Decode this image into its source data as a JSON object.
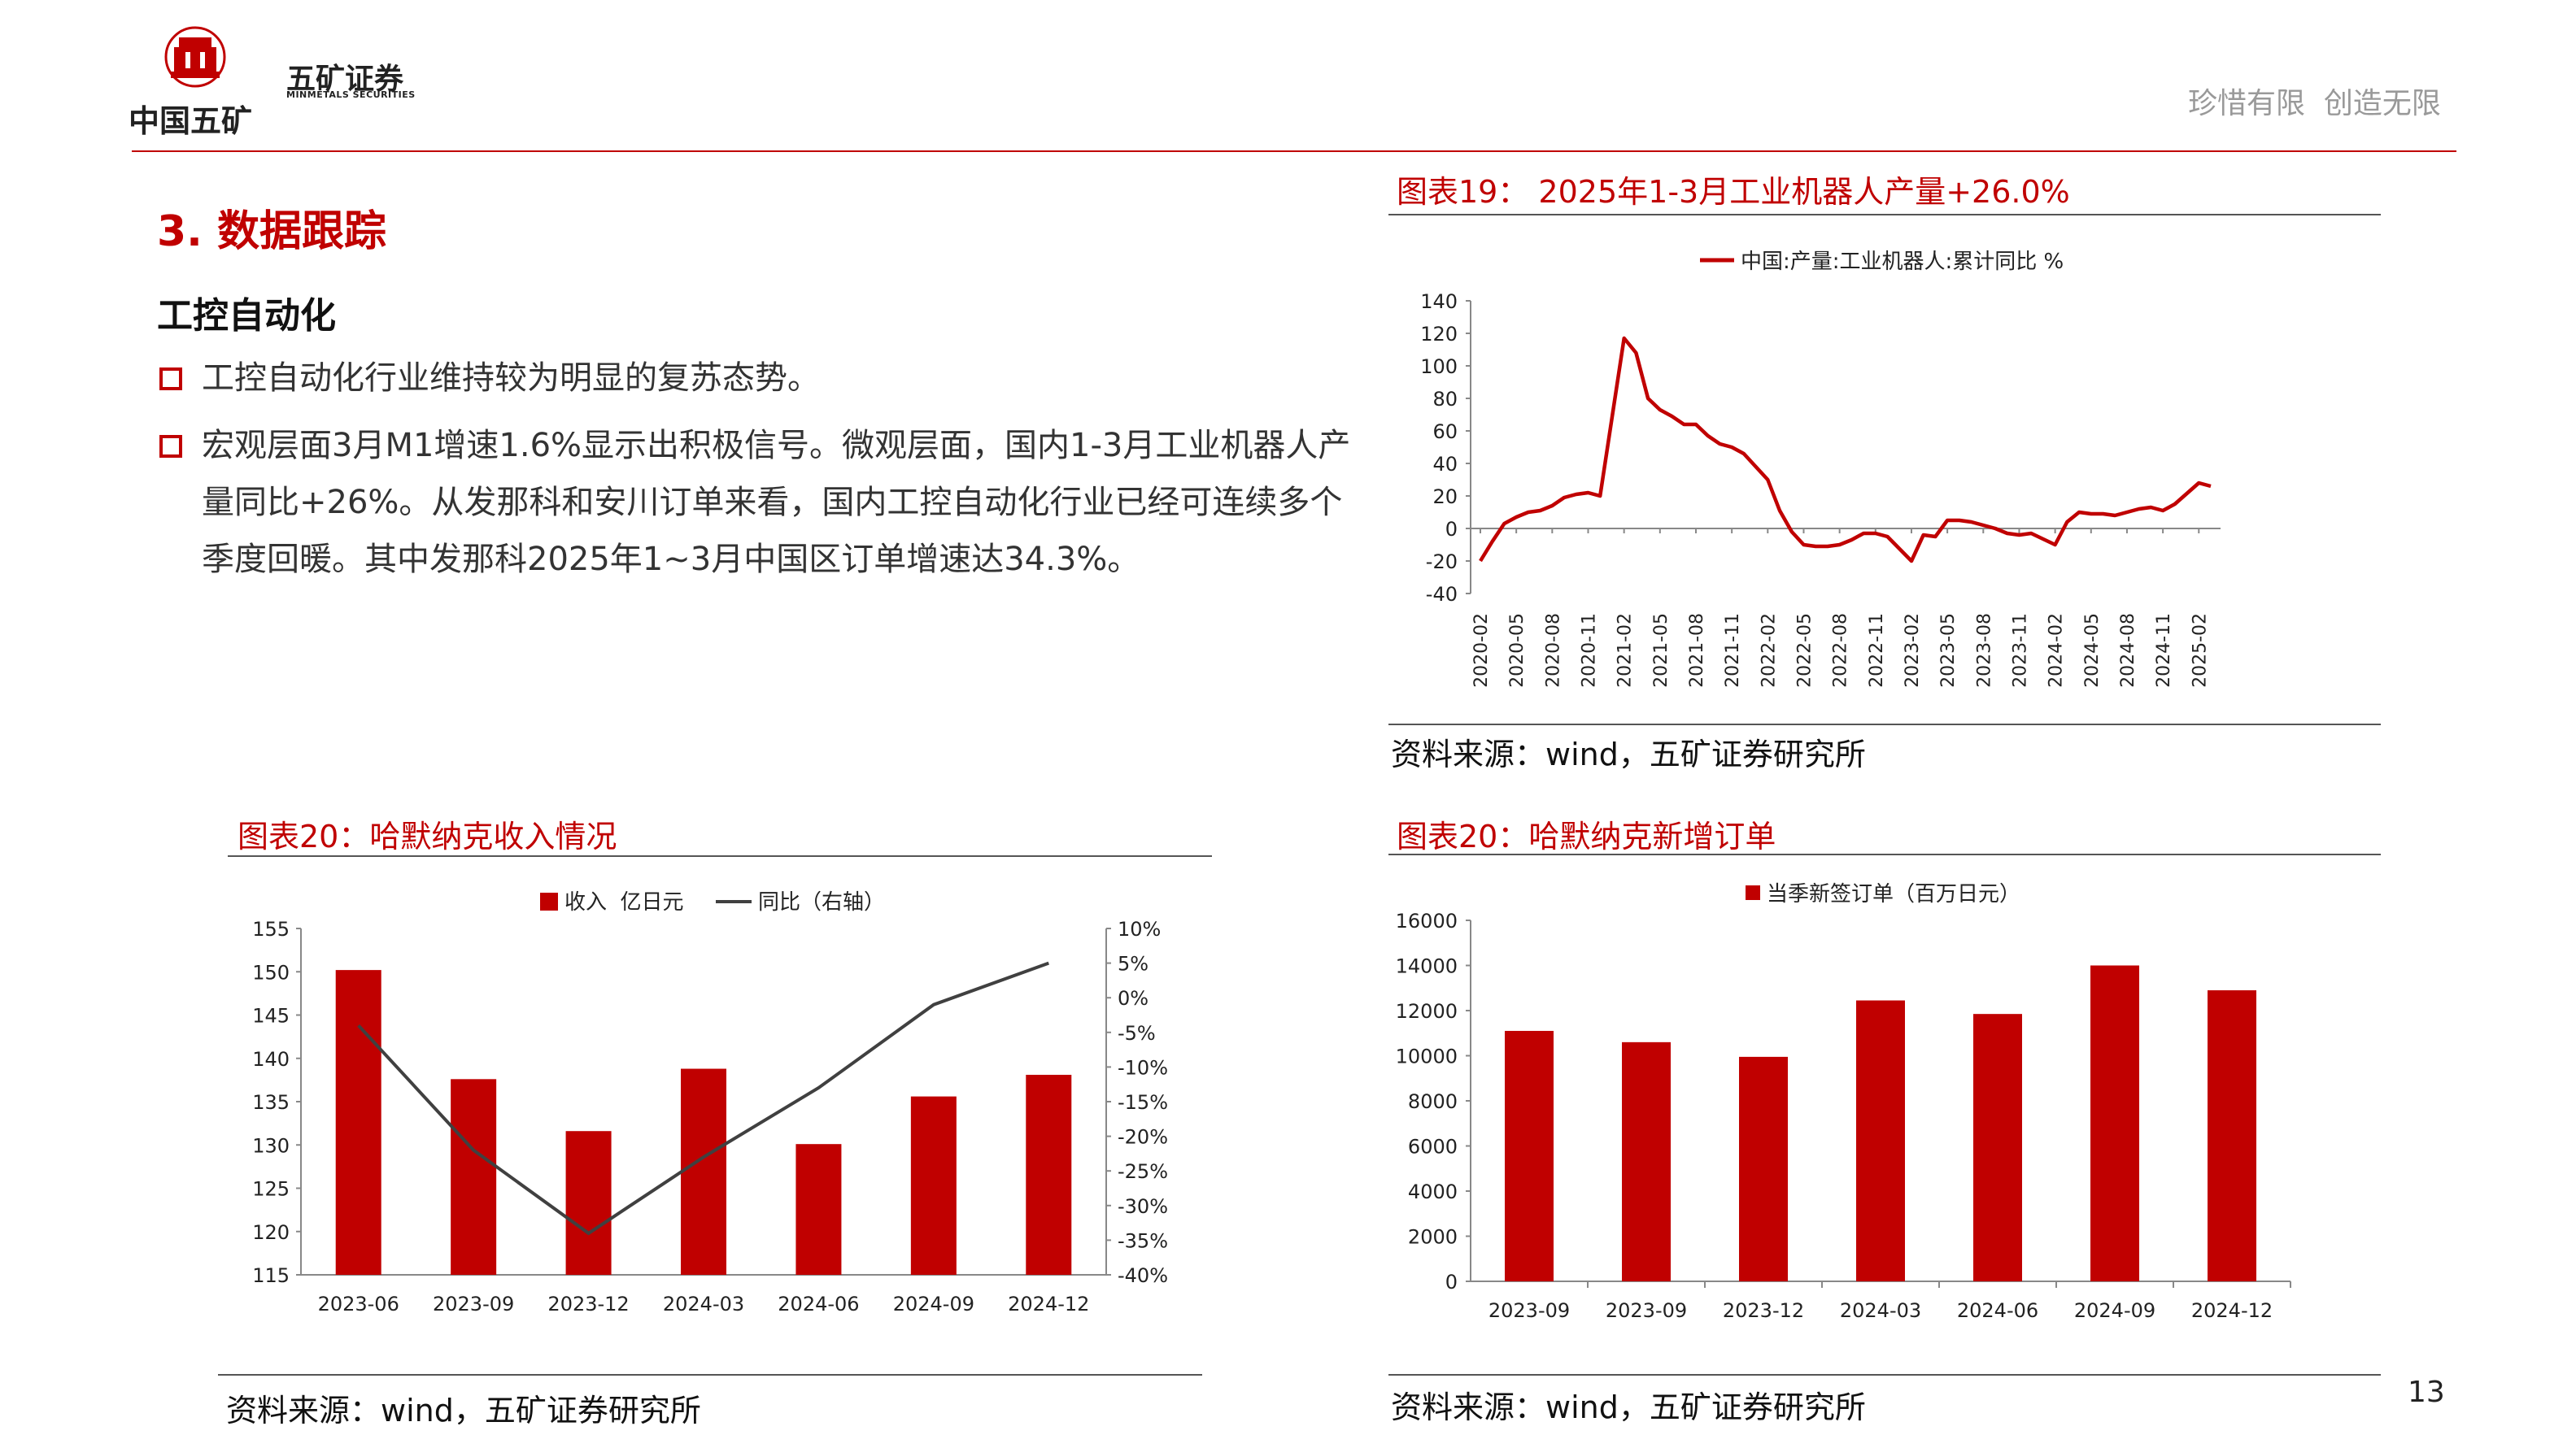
{
  "header": {
    "logo_main": "中国五矿",
    "logo_brand": "五矿证券",
    "logo_brand_en": "MINMETALS SECURITIES",
    "slogan": "珍惜有限  创造无限"
  },
  "section": {
    "title": "3. 数据跟踪",
    "subtitle": "工控自动化",
    "bullets": [
      "工控自动化行业维持较为明显的复苏态势。",
      "宏观层面3月M1增速1.6%显示出积极信号。微观层面，国内1-3月工业机器人产量同比+26%。从发那科和安川订单来看，国内工控自动化行业已经可连续多个季度回暖。其中发那科2025年1~3月中国区订单增速达34.3%。"
    ]
  },
  "page_number": "13",
  "charts": {
    "robot": {
      "title": "图表19： 2025年1-3月工业机器人产量+26.0%",
      "source": "资料来源：wind，五矿证券研究所"
    },
    "revenue": {
      "title": "图表20：哈默纳克收入情况",
      "source": "资料来源：wind，五矿证券研究所"
    },
    "orders": {
      "title": "图表20：哈默纳克新增订单",
      "source": "资料来源：wind，五矿证券研究所"
    }
  },
  "colors": {
    "accent": "#c00000",
    "line_dark": "#404040"
  },
  "chart_data": [
    {
      "id": "robot",
      "type": "line",
      "legend": "中国:产量:工业机器人:累计同比 %",
      "ylim": [
        -40,
        140
      ],
      "yticks": [
        -40,
        -20,
        0,
        20,
        40,
        60,
        80,
        100,
        120,
        140
      ],
      "xtick_labels": [
        "2020-02",
        "2020-05",
        "2020-08",
        "2020-11",
        "2021-02",
        "2021-05",
        "2021-08",
        "2021-11",
        "2022-02",
        "2022-05",
        "2022-08",
        "2022-11",
        "2023-02",
        "2023-05",
        "2023-08",
        "2023-11",
        "2024-02",
        "2024-05",
        "2024-08",
        "2024-11",
        "2025-02"
      ],
      "x": [
        "2020-02",
        "2020-03",
        "2020-04",
        "2020-05",
        "2020-06",
        "2020-07",
        "2020-08",
        "2020-09",
        "2020-10",
        "2020-11",
        "2020-12",
        "2021-02",
        "2021-03",
        "2021-04",
        "2021-05",
        "2021-06",
        "2021-07",
        "2021-08",
        "2021-09",
        "2021-10",
        "2021-11",
        "2021-12",
        "2022-02",
        "2022-03",
        "2022-04",
        "2022-05",
        "2022-06",
        "2022-07",
        "2022-08",
        "2022-09",
        "2022-10",
        "2022-11",
        "2022-12",
        "2023-02",
        "2023-03",
        "2023-04",
        "2023-05",
        "2023-06",
        "2023-07",
        "2023-08",
        "2023-09",
        "2023-10",
        "2023-11",
        "2023-12",
        "2024-02",
        "2024-03",
        "2024-04",
        "2024-05",
        "2024-06",
        "2024-07",
        "2024-08",
        "2024-09",
        "2024-10",
        "2024-11",
        "2024-12",
        "2025-02",
        "2025-03"
      ],
      "values": [
        -20,
        -8,
        3,
        7,
        10,
        11,
        14,
        19,
        21,
        22,
        20,
        117,
        108,
        80,
        73,
        69,
        64,
        64,
        57,
        52,
        50,
        46,
        30,
        11,
        -2,
        -10,
        -11,
        -11,
        -10,
        -7,
        -3,
        -3,
        -5,
        -20,
        -4,
        -5,
        5,
        5,
        4,
        2,
        0,
        -3,
        -4,
        -3,
        -10,
        4,
        10,
        9,
        9,
        8,
        10,
        12,
        13,
        11,
        15,
        28,
        26
      ]
    },
    {
      "id": "revenue",
      "type": "bar+line",
      "categories": [
        "2023-06",
        "2023-09",
        "2023-12",
        "2024-03",
        "2024-06",
        "2024-09",
        "2024-12"
      ],
      "series": [
        {
          "name": "收入  亿日元",
          "type": "bar",
          "axis": "left",
          "values": [
            150.2,
            137.6,
            131.6,
            138.8,
            130.1,
            135.6,
            138.1
          ]
        },
        {
          "name": "同比（右轴）",
          "type": "line",
          "axis": "right",
          "values": [
            -4,
            -22,
            -34,
            -23,
            -13,
            -1,
            5
          ]
        }
      ],
      "ylim_left": [
        115,
        155
      ],
      "yticks_left": [
        115,
        120,
        125,
        130,
        135,
        140,
        145,
        150,
        155
      ],
      "ylim_right": [
        -40,
        10
      ],
      "yticks_right": [
        "-40%",
        "-35%",
        "-30%",
        "-25%",
        "-20%",
        "-15%",
        "-10%",
        "-5%",
        "0%",
        "5%",
        "10%"
      ]
    },
    {
      "id": "orders",
      "type": "bar",
      "legend": "当季新签订单（百万日元）",
      "categories": [
        "2023-09",
        "2023-09",
        "2023-12",
        "2024-03",
        "2024-06",
        "2024-09",
        "2024-12"
      ],
      "values": [
        11100,
        10600,
        9950,
        12450,
        11850,
        14000,
        12900
      ],
      "ylim": [
        0,
        16000
      ],
      "yticks": [
        0,
        2000,
        4000,
        6000,
        8000,
        10000,
        12000,
        14000,
        16000
      ]
    }
  ]
}
